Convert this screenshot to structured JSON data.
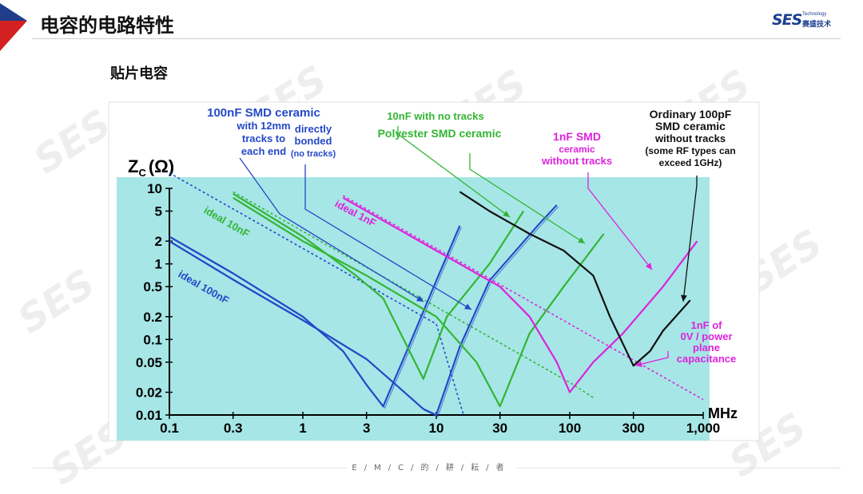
{
  "header": {
    "title": "电容的电路特性",
    "subtitle": "贴片电容"
  },
  "logo": {
    "brand": "SES",
    "tech": "Technology",
    "cn": "赛盛技术"
  },
  "watermark": {
    "text": "SES"
  },
  "footer": {
    "text": "E/M/C/的/耕/耘/者"
  },
  "colors": {
    "plot_bg": "#a6e6e6",
    "blue": "#2448c8",
    "green": "#33b533",
    "magenta": "#dd22dd",
    "black": "#111111",
    "header_accent_blue": "#1f3d8a",
    "header_accent_red": "#d42020"
  },
  "chart_data": {
    "type": "line",
    "xscale": "log",
    "yscale": "log",
    "xlim": [
      0.1,
      1000
    ],
    "ylim": [
      0.01,
      10
    ],
    "ylabel": "Z_C (Ω)",
    "ylabel_main": "Z",
    "ylabel_sub": "C",
    "ylabel_unit": "(Ω)",
    "xlabel": "MHz",
    "xticks": [
      {
        "v": 0.1,
        "label": "0.1"
      },
      {
        "v": 0.3,
        "label": "0.3"
      },
      {
        "v": 1,
        "label": "1"
      },
      {
        "v": 3,
        "label": "3"
      },
      {
        "v": 10,
        "label": "10"
      },
      {
        "v": 30,
        "label": "30"
      },
      {
        "v": 100,
        "label": "100"
      },
      {
        "v": 300,
        "label": "300"
      },
      {
        "v": 1000,
        "label": "1,000"
      }
    ],
    "yticks": [
      {
        "v": 10,
        "label": "10"
      },
      {
        "v": 5,
        "label": "5"
      },
      {
        "v": 2,
        "label": "2"
      },
      {
        "v": 1,
        "label": "1"
      },
      {
        "v": 0.5,
        "label": "0.5"
      },
      {
        "v": 0.2,
        "label": "0.2"
      },
      {
        "v": 0.1,
        "label": "0.1"
      },
      {
        "v": 0.05,
        "label": "0.05"
      },
      {
        "v": 0.02,
        "label": "0.02"
      },
      {
        "v": 0.01,
        "label": "0.01"
      }
    ],
    "series": [
      {
        "key": "ideal_100nF",
        "color": "#2448c8",
        "dashed": true,
        "width": 1.6,
        "points": [
          [
            0.1,
            16
          ],
          [
            1,
            1.6
          ],
          [
            10,
            0.16
          ],
          [
            16,
            0.01
          ]
        ]
      },
      {
        "key": "ideal_10nF",
        "color": "#33b533",
        "dashed": true,
        "width": 1.6,
        "points": [
          [
            0.3,
            9
          ],
          [
            3,
            0.9
          ],
          [
            30,
            0.09
          ],
          [
            100,
            0.027
          ],
          [
            150,
            0.017
          ]
        ]
      },
      {
        "key": "ideal_1nF",
        "color": "#dd22dd",
        "dashed": true,
        "width": 1.6,
        "points": [
          [
            2,
            8
          ],
          [
            20,
            0.8
          ],
          [
            200,
            0.08
          ],
          [
            1000,
            0.016
          ]
        ]
      },
      {
        "key": "blue_12mm",
        "color": "#2448c8",
        "dashed": false,
        "width": 2.2,
        "points": [
          [
            0.1,
            2.3
          ],
          [
            0.3,
            0.75
          ],
          [
            1,
            0.2
          ],
          [
            2,
            0.07
          ],
          [
            3,
            0.025
          ],
          [
            4,
            0.013
          ],
          [
            6,
            0.07
          ],
          [
            10,
            0.6
          ],
          [
            15,
            3.2
          ]
        ]
      },
      {
        "key": "blue_bonded",
        "color": "#2448c8",
        "dashed": false,
        "width": 2.2,
        "points": [
          [
            0.1,
            2.0
          ],
          [
            0.3,
            0.62
          ],
          [
            1,
            0.18
          ],
          [
            3,
            0.055
          ],
          [
            5,
            0.025
          ],
          [
            8,
            0.012
          ],
          [
            10,
            0.01
          ],
          [
            15,
            0.08
          ],
          [
            25,
            0.6
          ],
          [
            60,
            3.5
          ],
          [
            80,
            6
          ]
        ]
      },
      {
        "key": "green_notracks",
        "color": "#33b533",
        "dashed": false,
        "width": 2.2,
        "points": [
          [
            0.3,
            8.5
          ],
          [
            1,
            2.3
          ],
          [
            2.5,
            0.7
          ],
          [
            4,
            0.35
          ],
          [
            8,
            0.03
          ],
          [
            12,
            0.2
          ],
          [
            25,
            1.0
          ],
          [
            45,
            5
          ]
        ]
      },
      {
        "key": "green_polyester",
        "color": "#33b533",
        "dashed": false,
        "width": 2.2,
        "points": [
          [
            0.3,
            7.5
          ],
          [
            1,
            2.0
          ],
          [
            3,
            0.7
          ],
          [
            10,
            0.2
          ],
          [
            20,
            0.05
          ],
          [
            30,
            0.013
          ],
          [
            50,
            0.12
          ],
          [
            90,
            0.5
          ],
          [
            180,
            2.5
          ]
        ]
      },
      {
        "key": "magenta_1nF",
        "color": "#dd22dd",
        "dashed": false,
        "width": 2.2,
        "points": [
          [
            2,
            7.5
          ],
          [
            10,
            1.5
          ],
          [
            30,
            0.5
          ],
          [
            50,
            0.2
          ],
          [
            80,
            0.05
          ],
          [
            100,
            0.02
          ],
          [
            150,
            0.05
          ],
          [
            250,
            0.12
          ],
          [
            500,
            0.5
          ],
          [
            900,
            2.0
          ]
        ]
      },
      {
        "key": "black_100pF",
        "color": "#111111",
        "dashed": false,
        "width": 2.2,
        "points": [
          [
            15,
            9
          ],
          [
            25,
            5
          ],
          [
            50,
            2.5
          ],
          [
            90,
            1.5
          ],
          [
            150,
            0.7
          ],
          [
            200,
            0.2
          ],
          [
            300,
            0.045
          ],
          [
            400,
            0.07
          ],
          [
            500,
            0.13
          ],
          [
            800,
            0.33
          ]
        ]
      }
    ],
    "annotations": [
      {
        "key": "blue_12mm",
        "color": "#2448c8",
        "lines": [
          "100nF SMD ceramic",
          "with 12mm",
          "tracks to",
          "each end"
        ]
      },
      {
        "key": "blue_bonded",
        "color": "#2448c8",
        "lines": [
          "directly",
          "bonded",
          "(no tracks)"
        ]
      },
      {
        "key": "green_notracks",
        "color": "#33b533",
        "lines": [
          "10nF with no tracks"
        ]
      },
      {
        "key": "green_polyester",
        "color": "#33b533",
        "lines": [
          "Polyester  SMD ceramic"
        ]
      },
      {
        "key": "magenta_1nF",
        "color": "#dd22dd",
        "lines": [
          "1nF SMD",
          "ceramic",
          "without tracks"
        ]
      },
      {
        "key": "black_100pF",
        "color": "#111111",
        "lines": [
          "Ordinary 100pF",
          "SMD ceramic",
          "without tracks",
          "(some RF types can",
          "exceed 1GHz)"
        ]
      },
      {
        "key": "power_plane",
        "color": "#dd22dd",
        "lines": [
          "1nF of",
          "0V / power",
          "plane",
          "capacitance"
        ]
      },
      {
        "key": "ideal_1nF_label",
        "color": "#dd22dd",
        "lines": [
          "ideal 1nF"
        ]
      },
      {
        "key": "ideal_10nF_label",
        "color": "#33b533",
        "lines": [
          "ideal 10nF"
        ]
      },
      {
        "key": "ideal_100nF_label",
        "color": "#2448c8",
        "lines": [
          "ideal 100nF"
        ]
      }
    ]
  }
}
